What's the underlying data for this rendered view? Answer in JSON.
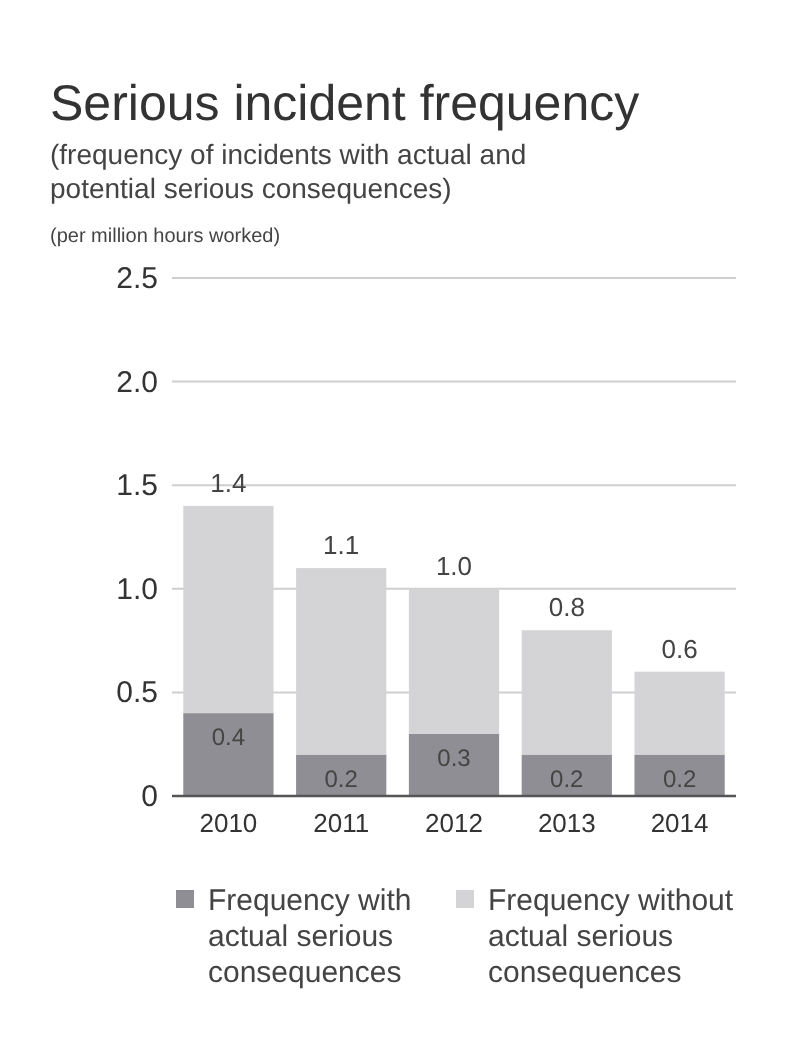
{
  "chart_data": {
    "type": "bar",
    "title": "Serious incident frequency",
    "subtitle": "(frequency of incidents with actual and potential serious consequences)",
    "annotations": [
      "(per million hours worked)"
    ],
    "categories": [
      "2010",
      "2011",
      "2012",
      "2013",
      "2014"
    ],
    "stacked": true,
    "series": [
      {
        "name": "Frequency with actual serious consequences",
        "color": "#8e8e94",
        "values": [
          0.4,
          0.2,
          0.3,
          0.2,
          0.2
        ],
        "value_labels": [
          "0.4",
          "0.2",
          "0.3",
          "0.2",
          "0.2"
        ]
      },
      {
        "name": "Frequency without actual serious consequences",
        "color": "#d4d4d6",
        "values": [
          1.0,
          0.9,
          0.7,
          0.6,
          0.4
        ]
      }
    ],
    "totals": [
      "1.4",
      "1.1",
      "1.0",
      "0.8",
      "0.6"
    ],
    "ylim": [
      0,
      2.5
    ],
    "yticks": [
      {
        "value": 0,
        "label": "0"
      },
      {
        "value": 0.5,
        "label": "0.5"
      },
      {
        "value": 1,
        "label": "1.0"
      },
      {
        "value": 1.5,
        "label": "1.5"
      },
      {
        "value": 2,
        "label": "2.0"
      },
      {
        "value": 2.5,
        "label": "2.5"
      }
    ],
    "grid": "y",
    "legend": "bottom"
  }
}
